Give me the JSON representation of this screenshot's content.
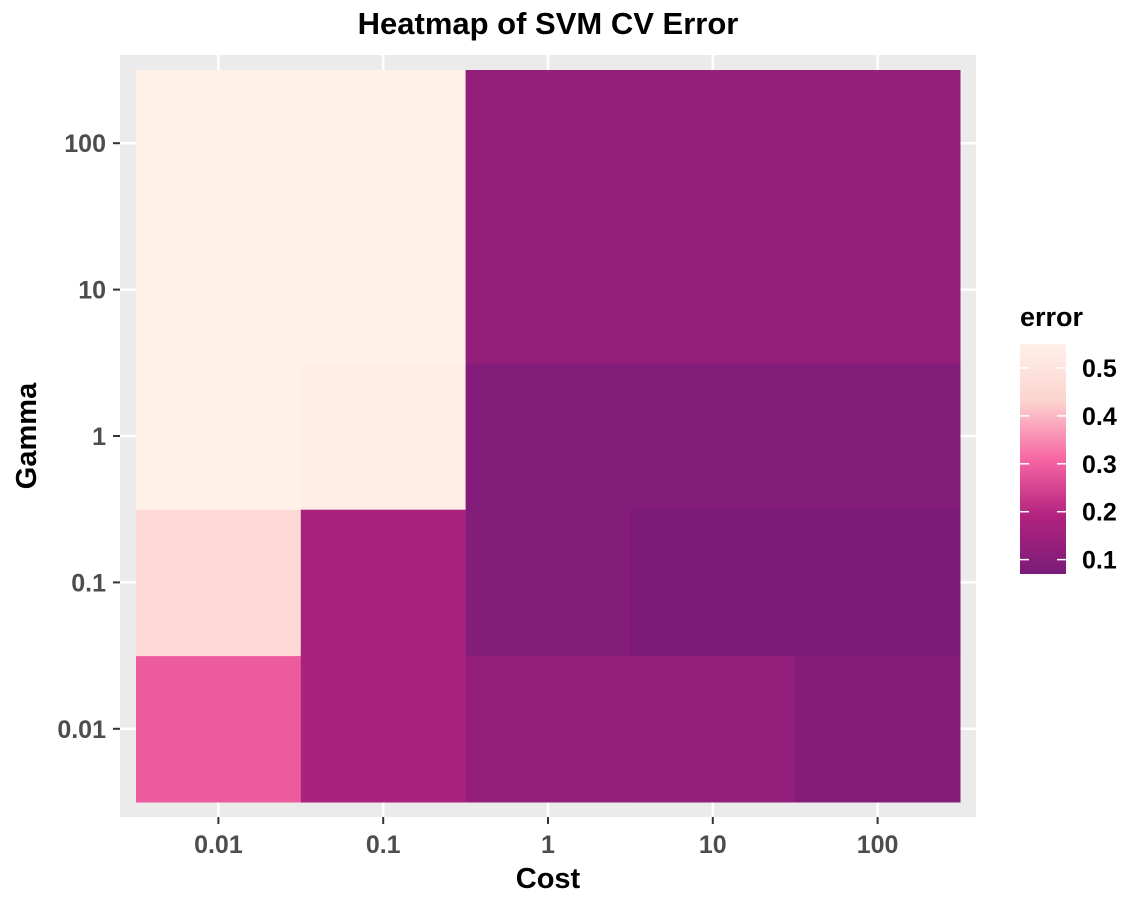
{
  "chart_data": {
    "type": "heatmap",
    "title": "Heatmap of SVM CV Error",
    "xlabel": "Cost",
    "ylabel": "Gamma",
    "x_categories": [
      "0.01",
      "0.1",
      "1",
      "10",
      "100"
    ],
    "y_categories": [
      "0.01",
      "0.1",
      "1",
      "10",
      "100"
    ],
    "x_scale": "log10",
    "y_scale": "log10",
    "grid": true,
    "legend": {
      "title": "error",
      "position": "right",
      "range": [
        0.07,
        0.55
      ],
      "ticks": [
        0.1,
        0.2,
        0.3,
        0.4,
        0.5
      ],
      "tick_labels": [
        "0.1",
        "0.2",
        "0.3",
        "0.4",
        "0.5"
      ],
      "colors": [
        "#7a1c78",
        "#b1237f",
        "#f766a3",
        "#fcd3cf",
        "#fff0e8"
      ]
    },
    "cells": [
      {
        "cost": 0.01,
        "gamma": 0.01,
        "error": 0.29
      },
      {
        "cost": 0.01,
        "gamma": 0.1,
        "error": 0.46
      },
      {
        "cost": 0.01,
        "gamma": 1,
        "error": 0.55
      },
      {
        "cost": 0.01,
        "gamma": 10,
        "error": 0.55
      },
      {
        "cost": 0.01,
        "gamma": 100,
        "error": 0.55
      },
      {
        "cost": 0.1,
        "gamma": 0.01,
        "error": 0.17
      },
      {
        "cost": 0.1,
        "gamma": 0.1,
        "error": 0.17
      },
      {
        "cost": 0.1,
        "gamma": 1,
        "error": 0.54
      },
      {
        "cost": 0.1,
        "gamma": 10,
        "error": 0.55
      },
      {
        "cost": 0.1,
        "gamma": 100,
        "error": 0.55
      },
      {
        "cost": 1,
        "gamma": 0.01,
        "error": 0.125
      },
      {
        "cost": 1,
        "gamma": 0.1,
        "error": 0.09
      },
      {
        "cost": 1,
        "gamma": 1,
        "error": 0.09
      },
      {
        "cost": 1,
        "gamma": 10,
        "error": 0.125
      },
      {
        "cost": 1,
        "gamma": 100,
        "error": 0.125
      },
      {
        "cost": 10,
        "gamma": 0.01,
        "error": 0.12
      },
      {
        "cost": 10,
        "gamma": 0.1,
        "error": 0.075
      },
      {
        "cost": 10,
        "gamma": 1,
        "error": 0.09
      },
      {
        "cost": 10,
        "gamma": 10,
        "error": 0.125
      },
      {
        "cost": 10,
        "gamma": 100,
        "error": 0.125
      },
      {
        "cost": 100,
        "gamma": 0.01,
        "error": 0.095
      },
      {
        "cost": 100,
        "gamma": 0.1,
        "error": 0.075
      },
      {
        "cost": 100,
        "gamma": 1,
        "error": 0.09
      },
      {
        "cost": 100,
        "gamma": 10,
        "error": 0.125
      },
      {
        "cost": 100,
        "gamma": 100,
        "error": 0.125
      }
    ]
  }
}
